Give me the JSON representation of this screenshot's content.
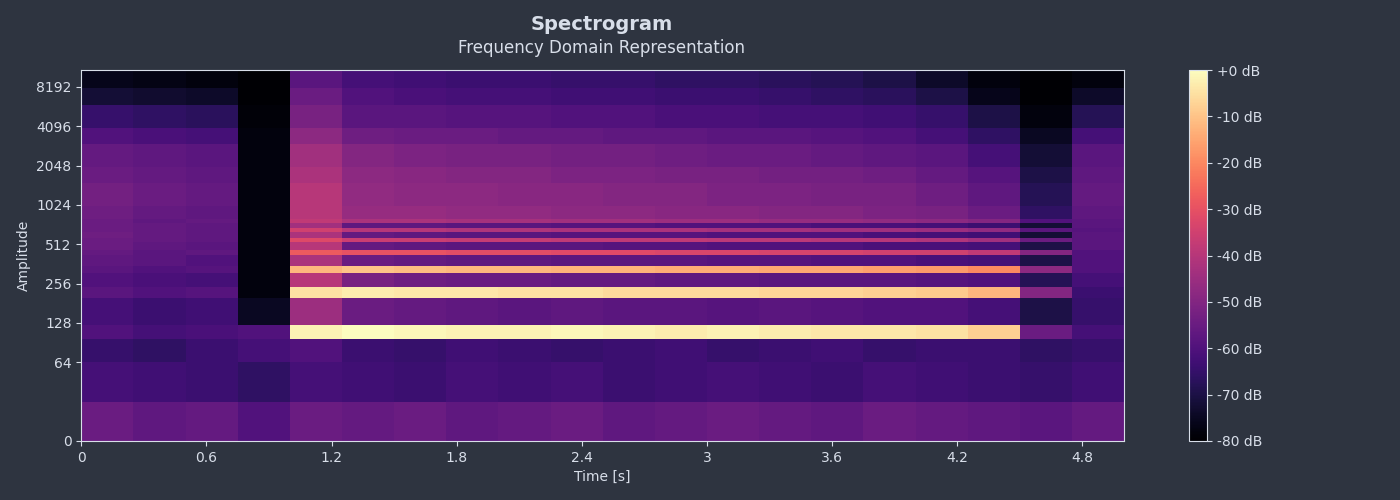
{
  "chart_data": {
    "type": "heatmap",
    "title": "Spectrogram",
    "subtitle": "Frequency Domain Representation",
    "x_label": "Time [s]",
    "y_label": "Amplitude",
    "color": "magma",
    "log": "y",
    "x": [
      0,
      0.25,
      0.5,
      0.75,
      1.0,
      1.25,
      1.5,
      1.75,
      2.0,
      2.25,
      2.5,
      2.75,
      3.0,
      3.25,
      3.5,
      3.75,
      4.0,
      4.25,
      4.5,
      4.75,
      5.0
    ],
    "y": [
      0,
      32,
      64,
      96,
      124,
      200,
      240,
      310,
      350,
      420,
      460,
      530,
      570,
      640,
      680,
      750,
      800,
      1000,
      1500,
      2000,
      3000,
      4000,
      6000,
      8000,
      11025
    ],
    "cells": [
      [
        -55,
        -57,
        -56,
        -60,
        -55,
        -56,
        -55,
        -57,
        -56,
        -55,
        -57,
        -56,
        -55,
        -56,
        -57,
        -55,
        -56,
        -57,
        -58,
        -56
      ],
      [
        -62,
        -63,
        -64,
        -66,
        -62,
        -63,
        -64,
        -62,
        -63,
        -62,
        -64,
        -63,
        -62,
        -63,
        -64,
        -62,
        -63,
        -64,
        -65,
        -63
      ],
      [
        -65,
        -66,
        -64,
        -62,
        -60,
        -64,
        -65,
        -63,
        -64,
        -65,
        -64,
        -63,
        -65,
        -64,
        -63,
        -65,
        -64,
        -64,
        -66,
        -65
      ],
      [
        -60,
        -62,
        -61,
        -60,
        -2,
        0,
        -1,
        -2,
        -2,
        -1,
        -2,
        -3,
        -2,
        -3,
        -4,
        -4,
        -5,
        -8,
        -55,
        -62
      ],
      [
        -62,
        -64,
        -63,
        -75,
        -45,
        -55,
        -56,
        -57,
        -58,
        -57,
        -58,
        -58,
        -59,
        -58,
        -59,
        -60,
        -60,
        -62,
        -70,
        -65
      ],
      [
        -58,
        -60,
        -59,
        -78,
        -5,
        -3,
        -4,
        -4,
        -5,
        -5,
        -6,
        -6,
        -6,
        -7,
        -7,
        -8,
        -9,
        -12,
        -50,
        -64
      ],
      [
        -60,
        -61,
        -62,
        -78,
        -40,
        -52,
        -54,
        -55,
        -55,
        -56,
        -56,
        -57,
        -57,
        -58,
        -58,
        -58,
        -59,
        -60,
        -68,
        -62
      ],
      [
        -58,
        -60,
        -59,
        -78,
        -12,
        -10,
        -11,
        -12,
        -12,
        -13,
        -13,
        -14,
        -14,
        -15,
        -15,
        -16,
        -17,
        -20,
        -48,
        -60
      ],
      [
        -57,
        -58,
        -60,
        -78,
        -42,
        -55,
        -56,
        -57,
        -57,
        -58,
        -58,
        -58,
        -59,
        -59,
        -60,
        -60,
        -61,
        -62,
        -70,
        -60
      ],
      [
        -56,
        -58,
        -57,
        -78,
        -28,
        -30,
        -30,
        -31,
        -31,
        -32,
        -32,
        -33,
        -33,
        -34,
        -34,
        -35,
        -35,
        -38,
        -50,
        -60
      ],
      [
        -55,
        -57,
        -58,
        -78,
        -40,
        -56,
        -57,
        -58,
        -58,
        -58,
        -59,
        -59,
        -60,
        -60,
        -60,
        -61,
        -61,
        -62,
        -70,
        -58
      ],
      [
        -55,
        -56,
        -57,
        -78,
        -32,
        -36,
        -36,
        -37,
        -37,
        -38,
        -38,
        -38,
        -39,
        -39,
        -40,
        -40,
        -41,
        -44,
        -55,
        -58
      ],
      [
        -54,
        -56,
        -57,
        -78,
        -42,
        -56,
        -57,
        -58,
        -58,
        -59,
        -59,
        -59,
        -60,
        -60,
        -60,
        -61,
        -62,
        -63,
        -72,
        -58
      ],
      [
        -55,
        -56,
        -57,
        -78,
        -35,
        -40,
        -40,
        -41,
        -41,
        -42,
        -42,
        -42,
        -43,
        -43,
        -44,
        -44,
        -45,
        -47,
        -58,
        -59
      ],
      [
        -55,
        -56,
        -57,
        -78,
        -44,
        -57,
        -57,
        -58,
        -58,
        -59,
        -59,
        -60,
        -60,
        -60,
        -61,
        -61,
        -62,
        -64,
        -72,
        -58
      ],
      [
        -55,
        -57,
        -56,
        -78,
        -38,
        -42,
        -42,
        -43,
        -43,
        -44,
        -44,
        -45,
        -45,
        -46,
        -46,
        -47,
        -48,
        -50,
        -60,
        -58
      ],
      [
        -54,
        -56,
        -57,
        -78,
        -40,
        -46,
        -46,
        -47,
        -47,
        -48,
        -48,
        -49,
        -49,
        -50,
        -50,
        -51,
        -52,
        -55,
        -66,
        -57
      ],
      [
        -53,
        -55,
        -56,
        -78,
        -40,
        -47,
        -48,
        -48,
        -49,
        -49,
        -50,
        -50,
        -51,
        -51,
        -52,
        -52,
        -54,
        -57,
        -68,
        -56
      ],
      [
        -55,
        -56,
        -57,
        -78,
        -42,
        -48,
        -49,
        -50,
        -50,
        -51,
        -51,
        -52,
        -52,
        -53,
        -53,
        -54,
        -56,
        -59,
        -70,
        -57
      ],
      [
        -56,
        -57,
        -58,
        -78,
        -44,
        -50,
        -51,
        -52,
        -52,
        -53,
        -53,
        -54,
        -55,
        -55,
        -56,
        -57,
        -58,
        -62,
        -72,
        -58
      ],
      [
        -60,
        -61,
        -62,
        -78,
        -48,
        -54,
        -55,
        -55,
        -56,
        -56,
        -57,
        -57,
        -58,
        -58,
        -59,
        -60,
        -62,
        -66,
        -75,
        -62
      ],
      [
        -65,
        -66,
        -67,
        -79,
        -52,
        -58,
        -58,
        -59,
        -59,
        -60,
        -60,
        -61,
        -61,
        -62,
        -62,
        -63,
        -65,
        -70,
        -78,
        -68
      ],
      [
        -72,
        -73,
        -74,
        -80,
        -55,
        -60,
        -61,
        -62,
        -62,
        -63,
        -63,
        -64,
        -64,
        -65,
        -66,
        -67,
        -70,
        -76,
        -80,
        -74
      ],
      [
        -76,
        -77,
        -78,
        -80,
        -58,
        -62,
        -63,
        -64,
        -64,
        -65,
        -65,
        -66,
        -66,
        -67,
        -68,
        -70,
        -74,
        -78,
        -80,
        -78
      ]
    ],
    "xlim": [
      0,
      5.0
    ],
    "ylim": [
      0,
      11025
    ],
    "xticks": [
      0,
      0.6,
      1.2,
      1.8,
      2.4,
      3,
      3.6,
      4.2,
      4.8
    ],
    "yticks": [
      0,
      64,
      128,
      256,
      512,
      1024,
      2048,
      4096,
      8192
    ],
    "colorbar": {
      "range": [
        -80,
        0
      ],
      "ticks": [
        {
          "value": 0,
          "label": "+0 dB"
        },
        {
          "value": -10,
          "label": "-10 dB"
        },
        {
          "value": -20,
          "label": "-20 dB"
        },
        {
          "value": -30,
          "label": "-30 dB"
        },
        {
          "value": -40,
          "label": "-40 dB"
        },
        {
          "value": -50,
          "label": "-50 dB"
        },
        {
          "value": -60,
          "label": "-60 dB"
        },
        {
          "value": -70,
          "label": "-70 dB"
        },
        {
          "value": -80,
          "label": "-80 dB"
        }
      ]
    }
  }
}
